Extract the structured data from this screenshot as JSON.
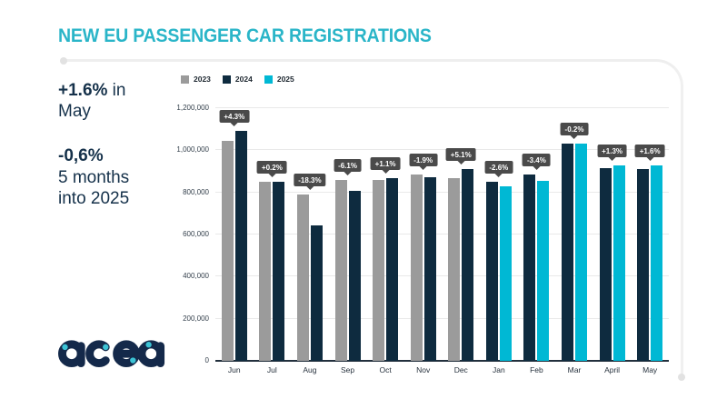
{
  "title": "NEW EU PASSENGER CAR REGISTRATIONS",
  "sidebar": {
    "stat1_value": "+1.6%",
    "stat1_rest": " in May",
    "stat2_value": "-0,6%",
    "stat2_rest": "5 months into 2025"
  },
  "logo": {
    "text": "acea"
  },
  "colors": {
    "title_accent": "#2ab5c8",
    "navy": "#0e2b3f",
    "gray": "#9b9b9b",
    "cyan": "#00b8d4",
    "badge_bg": "#4a4a4a",
    "gridline": "#e9e9e9",
    "frame_line": "#eeeeee",
    "text_dark": "#15314a"
  },
  "chart_data": {
    "type": "bar",
    "title": "NEW EU PASSENGER CAR REGISTRATIONS",
    "xlabel": "",
    "ylabel": "",
    "ylim": [
      0,
      1200000
    ],
    "yticks": [
      "0",
      "200,000",
      "400,000",
      "600,000",
      "800,000",
      "1,000,000",
      "1,200,000"
    ],
    "grid": true,
    "legend_position": "top",
    "categories": [
      "Jun",
      "Jul",
      "Aug",
      "Sep",
      "Oct",
      "Nov",
      "Dec",
      "Jan",
      "Feb",
      "Mar",
      "April",
      "May"
    ],
    "series": [
      {
        "name": "2023",
        "color": "#9b9b9b",
        "values": [
          1045000,
          850000,
          788000,
          861000,
          857000,
          886000,
          867000,
          null,
          null,
          null,
          null,
          null
        ]
      },
      {
        "name": "2024",
        "color": "#0e2b3f",
        "values": [
          1090000,
          852000,
          644000,
          809000,
          866000,
          870000,
          911000,
          852000,
          884000,
          1032000,
          914000,
          912000
        ]
      },
      {
        "name": "2025",
        "color": "#00b8d4",
        "values": [
          null,
          null,
          null,
          null,
          null,
          null,
          null,
          830000,
          854000,
          1030000,
          926000,
          926000
        ]
      }
    ],
    "badges": [
      "+4.3%",
      "+0.2%",
      "-18.3%",
      "-6.1%",
      "+1.1%",
      "-1.9%",
      "+5.1%",
      "-2.6%",
      "-3.4%",
      "-0.2%",
      "+1.3%",
      "+1.6%"
    ]
  }
}
